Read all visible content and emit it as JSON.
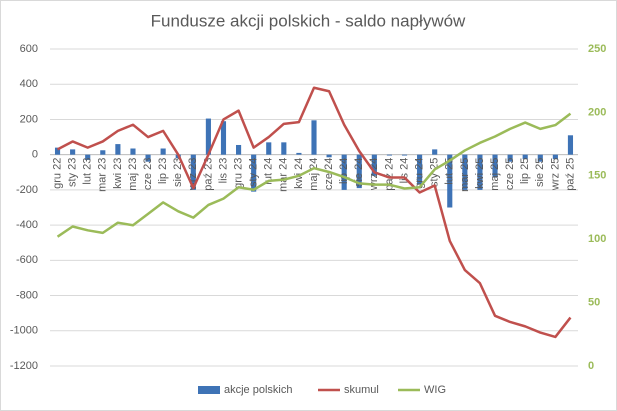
{
  "chart_data": {
    "type": "combo",
    "title": "Fundusze akcji polskich - saldo napływów",
    "categories": [
      "gru 22",
      "sty 23",
      "lut 23",
      "mar 23",
      "kwi 23",
      "maj 23",
      "cze 23",
      "lip 23",
      "sie 23",
      "wrz 23",
      "paź 23",
      "lis 23",
      "gru 23",
      "sty 24",
      "lut 24",
      "mar 24",
      "kwi 24",
      "maj 24",
      "cze 24",
      "lip 24",
      "sie 24",
      "wrz 24",
      "paź 24",
      "lis 24",
      "gru 24",
      "sty 25",
      "lut 25",
      "mar 25",
      "kwi 25",
      "maj 25",
      "cze 25",
      "lip 25",
      "sie 25",
      "wrz 25",
      "paź 25"
    ],
    "series": [
      {
        "name": "akcje polskich",
        "kind": "bar",
        "color": "#3e73b6",
        "values": [
          40,
          30,
          -30,
          25,
          60,
          35,
          -40,
          35,
          -20,
          -200,
          205,
          190,
          55,
          -210,
          70,
          70,
          10,
          195,
          -15,
          -200,
          -190,
          -120,
          -5,
          -5,
          -170,
          30,
          -300,
          -200,
          -200,
          -130,
          -40,
          -25,
          -40,
          -25,
          110
        ]
      },
      {
        "name": "skumul",
        "kind": "line",
        "color": "#c0504d",
        "values": [
          30,
          75,
          40,
          75,
          135,
          170,
          100,
          135,
          0,
          -190,
          0,
          200,
          250,
          40,
          100,
          175,
          185,
          380,
          360,
          170,
          20,
          -100,
          -130,
          -130,
          -215,
          -175,
          -490,
          -655,
          -730,
          -915,
          -950,
          -975,
          -1010,
          -1035,
          -925
        ]
      },
      {
        "name": "WIG",
        "kind": "line",
        "axis": "y2",
        "color": "#9bbb59",
        "values": [
          102,
          110,
          107,
          105,
          113,
          111,
          120,
          129,
          122,
          117,
          127,
          132,
          141,
          139,
          146,
          147,
          150,
          156,
          153,
          149,
          144,
          143,
          143,
          140,
          141,
          155,
          162,
          170,
          176,
          181,
          187,
          192,
          187,
          190,
          199
        ]
      }
    ],
    "ylim": [
      -1200,
      600
    ],
    "yticks": [
      -1200,
      -1000,
      -800,
      -600,
      -400,
      -200,
      0,
      200,
      400,
      600
    ],
    "y2lim": [
      0,
      250
    ],
    "y2ticks": [
      0,
      50,
      100,
      150,
      200,
      250
    ],
    "grid": true,
    "legend": "bottom"
  }
}
